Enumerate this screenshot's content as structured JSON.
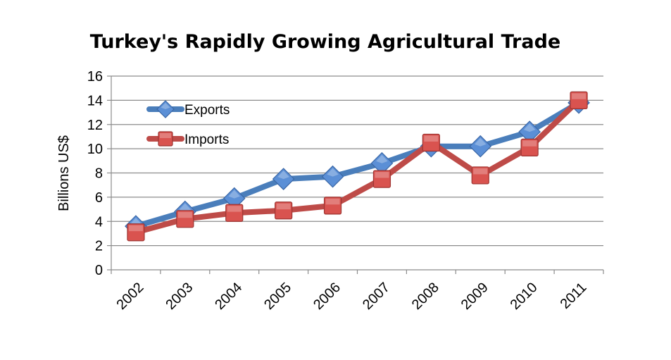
{
  "chart_data": {
    "type": "line",
    "title": "Turkey's Rapidly Growing Agricultural Trade",
    "xlabel": "",
    "ylabel": "Billions US$",
    "categories": [
      "2002",
      "2003",
      "2004",
      "2005",
      "2006",
      "2007",
      "2008",
      "2009",
      "2010",
      "2011"
    ],
    "ylim": [
      0,
      16
    ],
    "yticks": [
      0,
      2,
      4,
      6,
      8,
      10,
      12,
      14,
      16
    ],
    "grid": true,
    "legend_position": "top-left",
    "series": [
      {
        "name": "Exports",
        "marker": "diamond",
        "color": "#4a7ebb",
        "marker_color": "#5b8fd6",
        "values": [
          3.6,
          4.8,
          5.9,
          7.5,
          7.7,
          8.8,
          10.2,
          10.2,
          11.4,
          13.8
        ]
      },
      {
        "name": "Imports",
        "marker": "square",
        "color": "#be4b48",
        "marker_color": "#d9534f",
        "values": [
          3.1,
          4.2,
          4.7,
          4.9,
          5.3,
          7.5,
          10.5,
          7.8,
          10.1,
          14.0
        ]
      }
    ]
  }
}
